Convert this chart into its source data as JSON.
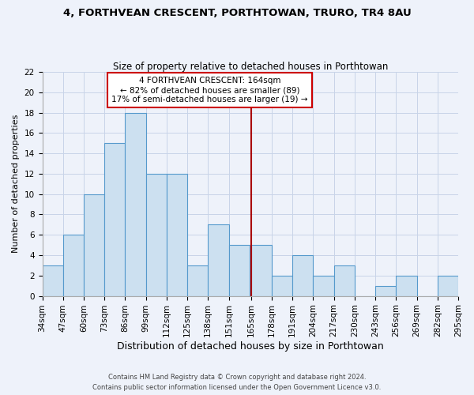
{
  "title": "4, FORTHVEAN CRESCENT, PORTHTOWAN, TRURO, TR4 8AU",
  "subtitle": "Size of property relative to detached houses in Porthtowan",
  "xlabel": "Distribution of detached houses by size in Porthtowan",
  "ylabel": "Number of detached properties",
  "bin_labels": [
    "34sqm",
    "47sqm",
    "60sqm",
    "73sqm",
    "86sqm",
    "99sqm",
    "112sqm",
    "125sqm",
    "138sqm",
    "151sqm",
    "165sqm",
    "178sqm",
    "191sqm",
    "204sqm",
    "217sqm",
    "230sqm",
    "243sqm",
    "256sqm",
    "269sqm",
    "282sqm",
    "295sqm"
  ],
  "bar_values": [
    3,
    6,
    10,
    15,
    18,
    12,
    12,
    3,
    7,
    5,
    5,
    2,
    4,
    2,
    3,
    0,
    1,
    2,
    0,
    2
  ],
  "bar_color": "#cce0f0",
  "bar_edge_color": "#5599cc",
  "ylim": [
    0,
    22
  ],
  "yticks": [
    0,
    2,
    4,
    6,
    8,
    10,
    12,
    14,
    16,
    18,
    20,
    22
  ],
  "subject_line_label": "165sqm",
  "subject_line_color": "#aa0000",
  "annotation_text_line1": "4 FORTHVEAN CRESCENT: 164sqm",
  "annotation_text_line2": "← 82% of detached houses are smaller (89)",
  "annotation_text_line3": "17% of semi-detached houses are larger (19) →",
  "annotation_box_edge_color": "#cc0000",
  "footnote_line1": "Contains HM Land Registry data © Crown copyright and database right 2024.",
  "footnote_line2": "Contains public sector information licensed under the Open Government Licence v3.0.",
  "grid_color": "#c8d4e8",
  "background_color": "#eef2fa",
  "title_fontsize": 9.5,
  "subtitle_fontsize": 8.5,
  "xlabel_fontsize": 9,
  "ylabel_fontsize": 8,
  "tick_fontsize": 7.5,
  "footnote_fontsize": 6
}
